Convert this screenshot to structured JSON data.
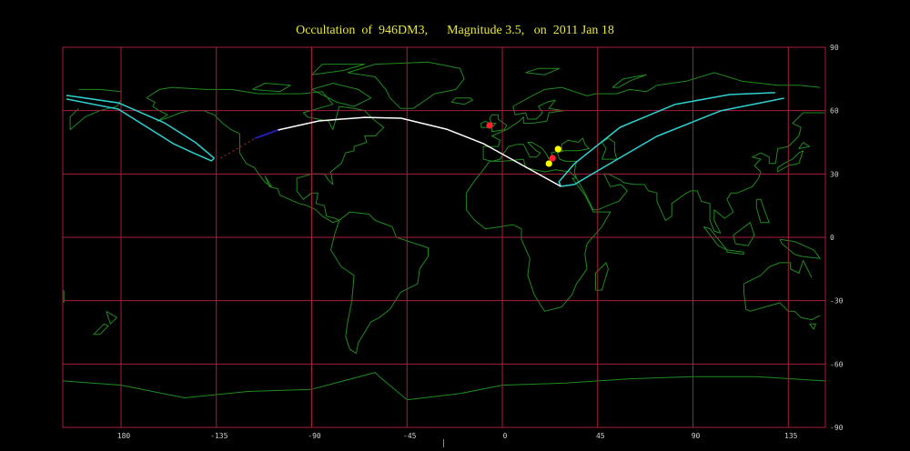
{
  "title": "Occultation  of  946DM3,      Magnitude 3.5,   on  2011 Jan 18",
  "map": {
    "projection": "equirectangular",
    "lon_range": [
      152.5,
      512.5
    ],
    "lat_range": [
      -90,
      90
    ],
    "grid_step_deg": 45,
    "lat_grid_step_deg": 30,
    "colors": {
      "background": "#000000",
      "grid": "#a8203c",
      "coastline": "#1f8a1f",
      "path_center": "#ffffff",
      "path_limits": "#30d0d0",
      "path_segment_blue": "#2020c0",
      "path_dotted": "#a02040",
      "marker_red": "#ff2030",
      "marker_yellow": "#ffff00"
    },
    "lon_labels": [
      "180",
      "-135",
      "-90",
      "-45",
      "0",
      "45",
      "90",
      "135"
    ],
    "lon_label_values": [
      180,
      -135,
      -90,
      -45,
      0,
      45,
      90,
      135
    ],
    "lat_labels": [
      "90",
      "60",
      "30",
      "0",
      "-30",
      "-60",
      "-90"
    ],
    "lat_label_values": [
      90,
      60,
      30,
      0,
      -30,
      -60,
      -90
    ]
  },
  "path": {
    "dotted": [
      [
        -133,
        37.5
      ],
      [
        -116.7,
        46.9
      ]
    ],
    "blue": [
      [
        -116.7,
        46.9
      ],
      [
        -105.9,
        50.8
      ]
    ],
    "center": [
      [
        -105.9,
        50.8
      ],
      [
        -86.6,
        55.1
      ],
      [
        -65,
        56.8
      ],
      [
        -47.8,
        56.4
      ],
      [
        -26.3,
        51.2
      ],
      [
        -9,
        44.4
      ],
      [
        8.2,
        34.9
      ],
      [
        27.6,
        24.1
      ]
    ],
    "limit_east": [
      [
        27.6,
        24.1
      ],
      [
        26.7,
        26.3
      ],
      [
        34,
        34.9
      ],
      [
        55.6,
        52.1
      ],
      [
        81.4,
        62.9
      ],
      [
        107.2,
        67.6
      ],
      [
        128.8,
        68.5
      ],
      [
        153.3,
        67.6
      ]
    ],
    "limit_east_return": [
      [
        153.3,
        66.3
      ],
      [
        133,
        65.9
      ],
      [
        103,
        59.9
      ],
      [
        72.8,
        47.8
      ],
      [
        47,
        32.7
      ],
      [
        34,
        25
      ],
      [
        27.6,
        24.1
      ]
    ],
    "limit_west_upper": [
      [
        154.2,
        67.2
      ],
      [
        178.7,
        63.7
      ],
      [
        -159.7,
        54.3
      ],
      [
        -145,
        45
      ],
      [
        -136,
        37.5
      ]
    ],
    "limit_west_lower": [
      [
        -136,
        37.5
      ],
      [
        -137.3,
        36.2
      ],
      [
        -146,
        40
      ],
      [
        -155.4,
        44.4
      ],
      [
        178.7,
        60.7
      ],
      [
        154.2,
        65.5
      ]
    ]
  },
  "markers": [
    {
      "type": "red",
      "lon": -6.0,
      "lat": 53.0
    },
    {
      "type": "yellow",
      "lon": 26.3,
      "lat": 41.8
    },
    {
      "type": "red",
      "lon": 23.7,
      "lat": 37.5
    },
    {
      "type": "yellow",
      "lon": 22.0,
      "lat": 34.9
    }
  ]
}
